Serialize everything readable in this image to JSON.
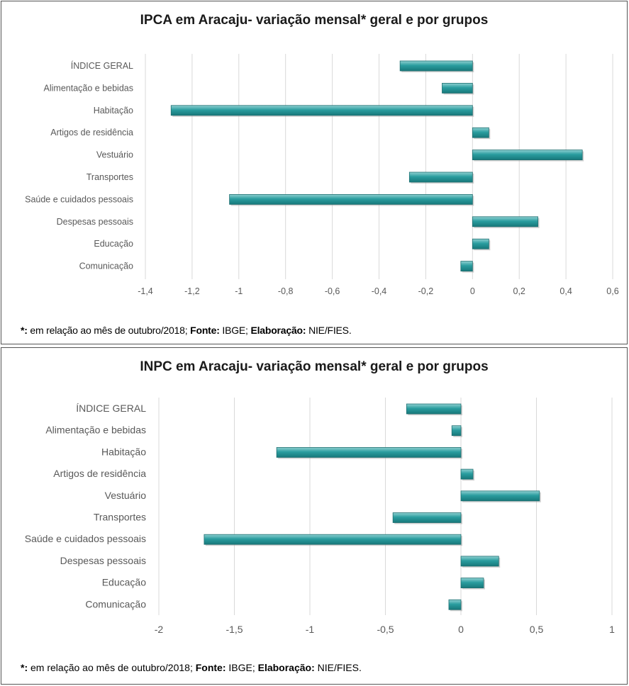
{
  "charts": [
    {
      "chart_data": {
        "type": "bar",
        "orientation": "horizontal",
        "title": "IPCA em Aracaju-  variação  mensal* geral e por grupos",
        "categories": [
          "ÍNDICE GERAL",
          "Alimentação e bebidas",
          "Habitação",
          "Artigos de residência",
          "Vestuário",
          "Transportes",
          "Saúde e cuidados pessoais",
          "Despesas pessoais",
          "Educação",
          "Comunicação"
        ],
        "values": [
          -0.31,
          -0.13,
          -1.29,
          0.07,
          0.47,
          -0.27,
          -1.04,
          0.28,
          0.07,
          -0.05
        ],
        "xlim": [
          -1.4,
          0.6
        ],
        "ticks": [
          -1.4,
          -1.2,
          -1,
          -0.8,
          -0.6,
          -0.4,
          -0.2,
          0,
          0.2,
          0.4,
          0.6
        ],
        "tick_labels": [
          "-1,4",
          "-1,2",
          "-1",
          "-0,8",
          "-0,6",
          "-0,4",
          "-0,2",
          "0",
          "0,2",
          "0,4",
          "0,6"
        ],
        "grid": true,
        "bar_color": "#2a9d9f"
      },
      "footnote": {
        "marker": "*:",
        "text1": " em relação ao mês de outubro/2018; ",
        "source_label": "Fonte:",
        "source": " IBGE; ",
        "elab_label": "Elaboração:",
        "elab": " NIE/FIES."
      }
    },
    {
      "chart_data": {
        "type": "bar",
        "orientation": "horizontal",
        "title": "INPC em Aracaju-  variação  mensal* geral e por grupos",
        "categories": [
          "ÍNDICE GERAL",
          "Alimentação e bebidas",
          "Habitação",
          "Artigos de residência",
          "Vestuário",
          "Transportes",
          "Saúde e cuidados pessoais",
          "Despesas pessoais",
          "Educação",
          "Comunicação"
        ],
        "values": [
          -0.36,
          -0.06,
          -1.22,
          0.08,
          0.52,
          -0.45,
          -1.7,
          0.25,
          0.15,
          -0.08
        ],
        "xlim": [
          -2,
          1
        ],
        "ticks": [
          -2,
          -1.5,
          -1,
          -0.5,
          0,
          0.5,
          1
        ],
        "tick_labels": [
          "-2",
          "-1,5",
          "-1",
          "-0,5",
          "0",
          "0,5",
          "1"
        ],
        "grid": true,
        "bar_color": "#2a9d9f"
      },
      "footnote": {
        "marker": "*:",
        "text1": " em relação ao mês de outubro/2018; ",
        "source_label": "Fonte:",
        "source": " IBGE; ",
        "elab_label": "Elaboração:",
        "elab": " NIE/FIES."
      }
    }
  ]
}
